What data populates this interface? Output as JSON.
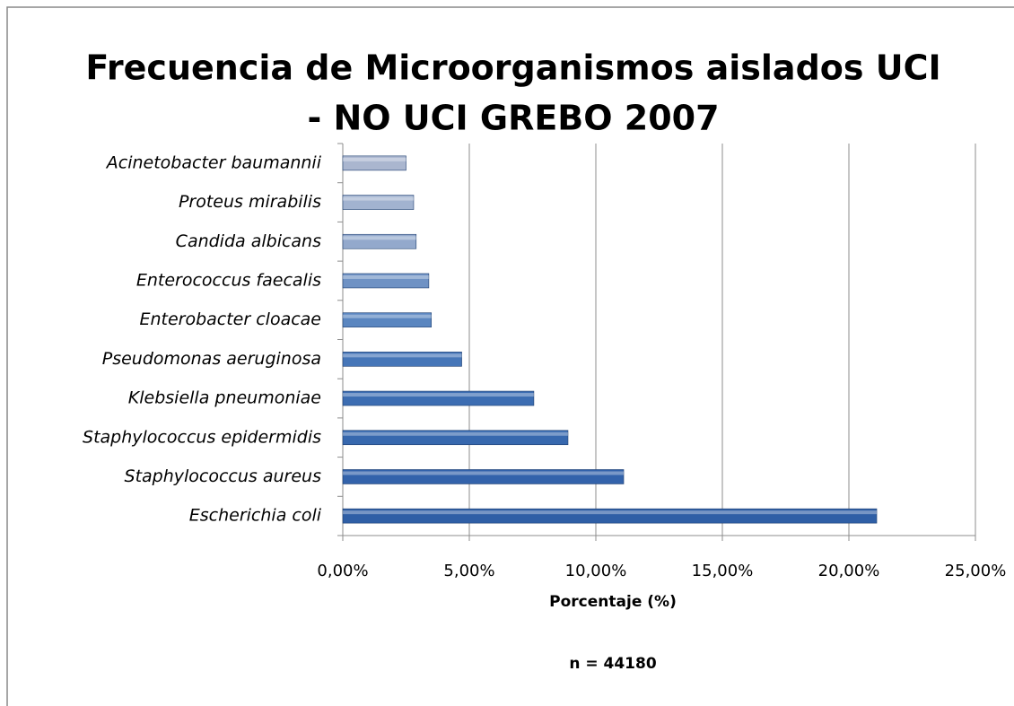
{
  "chart_data": {
    "type": "bar",
    "orientation": "horizontal",
    "title": [
      "Frecuencia de Microorganismos aislados UCI",
      "- NO UCI GREBO 2007"
    ],
    "categories": [
      "Escherichia coli",
      "Staphylococcus aureus",
      "Staphylococcus epidermidis",
      "Klebsiella pneumoniae",
      "Pseudomonas aeruginosa",
      "Enterobacter cloacae",
      "Enterococcus faecalis",
      "Candida albicans",
      "Proteus mirabilis",
      "Acinetobacter baumannii"
    ],
    "values": [
      21.1,
      11.1,
      8.9,
      7.55,
      4.7,
      3.5,
      3.4,
      2.9,
      2.8,
      2.5
    ],
    "colors": [
      "#2f5fa6",
      "#3363ab",
      "#3768ae",
      "#3c6db2",
      "#4676b8",
      "#5a86c0",
      "#6f92c4",
      "#93a9cc",
      "#a2b3d0",
      "#aab6cf"
    ],
    "xlim": [
      0,
      25
    ],
    "xticks": [
      {
        "value": 0,
        "label": "0,00%"
      },
      {
        "value": 5,
        "label": "5,00%"
      },
      {
        "value": 10,
        "label": "10,00%"
      },
      {
        "value": 15,
        "label": "15,00%"
      },
      {
        "value": 20,
        "label": "20,00%"
      },
      {
        "value": 25,
        "label": "25,00%"
      }
    ],
    "xlabel": "Porcentaje (%)",
    "annotation": "n = 44180",
    "grid": true
  }
}
